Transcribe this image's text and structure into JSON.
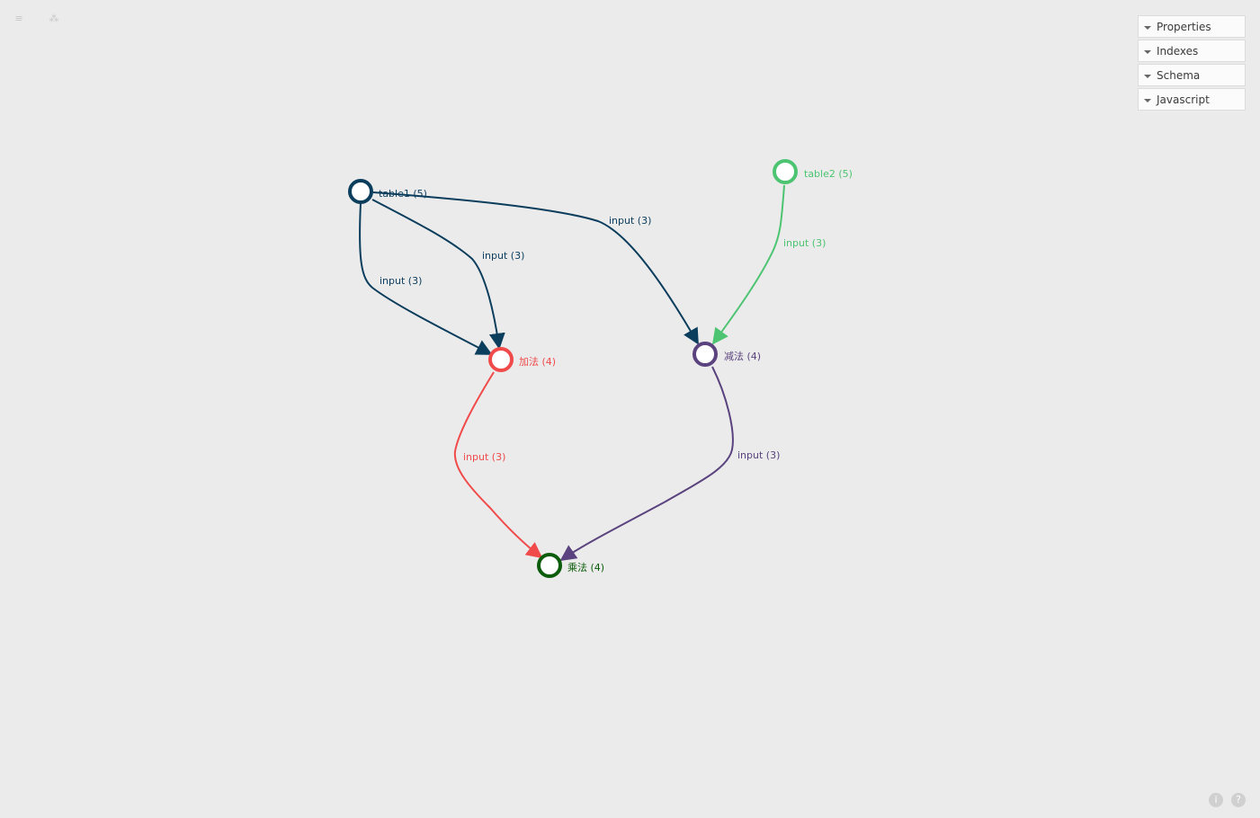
{
  "toolbar": {
    "menu_icon": "≡",
    "graph_icon": "⁂"
  },
  "panel": {
    "items": [
      {
        "label": "Properties"
      },
      {
        "label": "Indexes"
      },
      {
        "label": "Schema"
      },
      {
        "label": "Javascript"
      }
    ]
  },
  "graph": {
    "nodes": [
      {
        "id": "table1",
        "label": "table1 (5)",
        "color": "#0b3d5c"
      },
      {
        "id": "table2",
        "label": "table2 (5)",
        "color": "#4cc471"
      },
      {
        "id": "add",
        "label": "加法 (4)",
        "color": "#f04a4a"
      },
      {
        "id": "sub",
        "label": "减法 (4)",
        "color": "#5a437e"
      },
      {
        "id": "mul",
        "label": "乘法 (4)",
        "color": "#0b5c0b"
      }
    ],
    "edges": [
      {
        "from": "table1",
        "to": "add",
        "label": "input (3)",
        "color": "#0b3d5c"
      },
      {
        "from": "table1",
        "to": "add",
        "label": "input (3)",
        "color": "#0b3d5c"
      },
      {
        "from": "table1",
        "to": "sub",
        "label": "input (3)",
        "color": "#0b3d5c"
      },
      {
        "from": "table2",
        "to": "sub",
        "label": "input (3)",
        "color": "#4cc471"
      },
      {
        "from": "add",
        "to": "mul",
        "label": "input (3)",
        "color": "#f04a4a"
      },
      {
        "from": "sub",
        "to": "mul",
        "label": "input (3)",
        "color": "#5a437e"
      }
    ]
  },
  "footer": {
    "info_icon": "i",
    "help_icon": "?"
  }
}
